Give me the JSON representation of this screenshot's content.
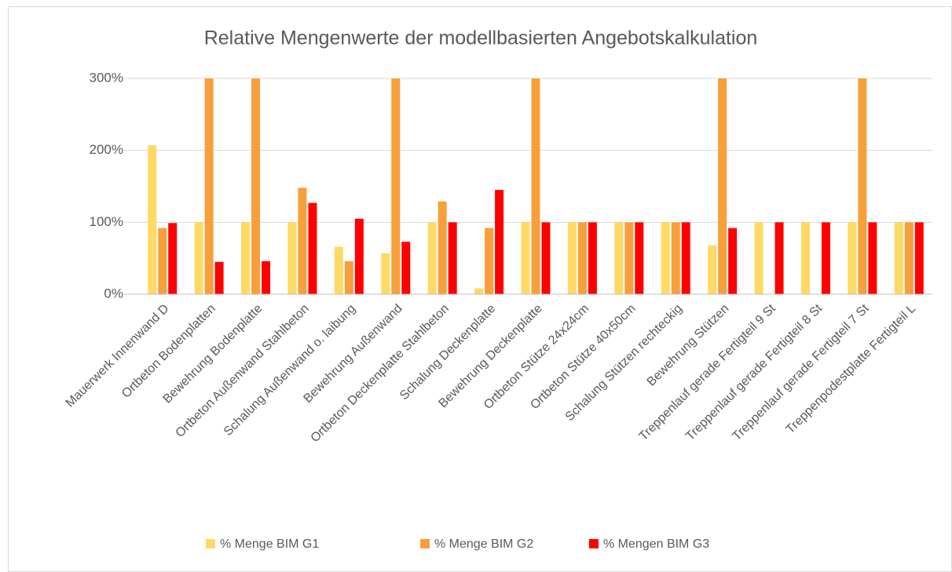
{
  "chart_data": {
    "type": "bar",
    "title": "Relative Mengenwerte der modellbasierten Angebotskalkulation",
    "categories": [
      "Mauerwerk Innenwand D",
      "Ortbeton Bodenplatten",
      "Bewehrung Bodenplatte",
      "Ortbeton Außenwand Stahlbeton",
      "Schalung Außenwand o. laibung",
      "Bewehrung Außenwand",
      "Ortbeton Deckenplatte Stahlbeton",
      "Schalung Deckenplatte",
      "Bewehrung Deckenplatte",
      "Ortbeton Stütze  24x24cm",
      "Ortbeton Stütze  40x50cm",
      "Schalung Stützen rechteckig",
      "Bewehrung Stützen",
      "Treppenlauf gerade Fertigteil 9 St",
      "Treppenlauf gerade Fertigteil 8 St",
      "Treppenlauf gerade Fertigteil 7 St",
      "Treppenpodestplatte Fertigteil L"
    ],
    "series": [
      {
        "name": "% Menge BIM G1",
        "color": "#ffd966",
        "values": [
          207,
          100,
          100,
          100,
          66,
          57,
          100,
          8,
          100,
          100,
          100,
          100,
          68,
          100,
          100,
          100,
          100
        ]
      },
      {
        "name": "% Menge BIM G2",
        "color": "#f79f3a",
        "values": [
          92,
          300,
          300,
          148,
          46,
          300,
          129,
          92,
          300,
          100,
          100,
          100,
          300,
          0,
          0,
          300,
          100
        ]
      },
      {
        "name": "% Mengen BIM G3",
        "color": "#ff0000",
        "values": [
          99,
          45,
          46,
          127,
          105,
          73,
          100,
          145,
          100,
          100,
          100,
          100,
          92,
          100,
          100,
          100,
          100
        ]
      }
    ],
    "ylim": [
      0,
      300
    ],
    "yticks": [
      {
        "value": 0,
        "label": "0%"
      },
      {
        "value": 100,
        "label": "100%"
      },
      {
        "value": 200,
        "label": "200%"
      },
      {
        "value": 300,
        "label": "300%"
      }
    ],
    "grid": true,
    "legend": "bottom"
  }
}
